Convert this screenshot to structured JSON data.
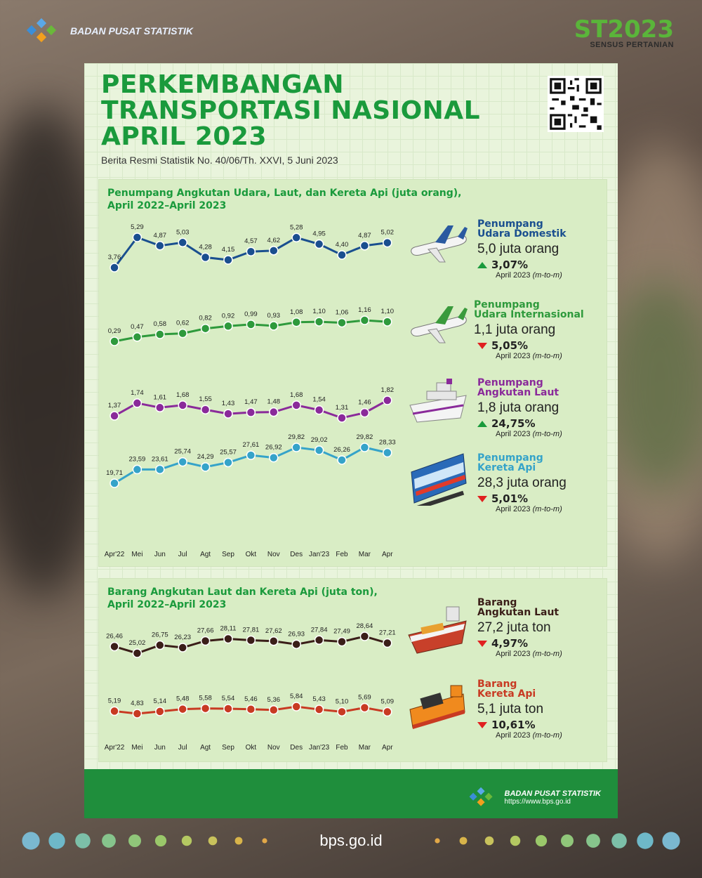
{
  "header": {
    "org_name": "BADAN PUSAT STATISTIK",
    "census_logo": "ST2023",
    "census_name": "SENSUS PERTANIAN"
  },
  "title": [
    "PERKEMBANGAN",
    "TRANSPORTASI NASIONAL",
    "APRIL 2023"
  ],
  "subtitle": "Berita Resmi Statistik No. 40/06/Th. XXVI, 5 Juni 2023",
  "chart_data": [
    {
      "type": "line",
      "title": "Penumpang Angkutan Udara, Laut, dan Kereta Api (juta orang), April 2022–April 2023",
      "categories": [
        "Apr'22",
        "Mei",
        "Jun",
        "Jul",
        "Agt",
        "Sep",
        "Okt",
        "Nov",
        "Des",
        "Jan'23",
        "Feb",
        "Mar",
        "Apr"
      ],
      "series": [
        {
          "name": "Penumpang Udara Domestik",
          "color": "#1a4f8f",
          "labels": [
            "3,76",
            "5,29",
            "4,87",
            "5,03",
            "4,28",
            "4,15",
            "4,57",
            "4,62",
            "5,28",
            "4,95",
            "4,40",
            "4,87",
            "5,02"
          ],
          "values": [
            3.76,
            5.29,
            4.87,
            5.03,
            4.28,
            4.15,
            4.57,
            4.62,
            5.28,
            4.95,
            4.4,
            4.87,
            5.02
          ]
        },
        {
          "name": "Penumpang Udara Internasional",
          "color": "#2e9a3c",
          "labels": [
            "0,29",
            "0,47",
            "0,58",
            "0,62",
            "0,82",
            "0,92",
            "0,99",
            "0,93",
            "1,08",
            "1,10",
            "1,06",
            "1,16",
            "1,10"
          ],
          "values": [
            0.29,
            0.47,
            0.58,
            0.62,
            0.82,
            0.92,
            0.99,
            0.93,
            1.08,
            1.1,
            1.06,
            1.16,
            1.1
          ]
        },
        {
          "name": "Penumpang Angkutan Laut",
          "color": "#8a2a9a",
          "labels": [
            "1,37",
            "1,74",
            "1,61",
            "1,68",
            "1,55",
            "1,43",
            "1,47",
            "1,48",
            "1,68",
            "1,54",
            "1,31",
            "1,46",
            "1,82"
          ],
          "values": [
            1.37,
            1.74,
            1.61,
            1.68,
            1.55,
            1.43,
            1.47,
            1.48,
            1.68,
            1.54,
            1.31,
            1.46,
            1.82
          ]
        },
        {
          "name": "Penumpang Kereta Api",
          "color": "#35a3c9",
          "labels": [
            "19,71",
            "23,59",
            "23,61",
            "25,74",
            "24,29",
            "25,57",
            "27,61",
            "26,92",
            "29,82",
            "29,02",
            "26,26",
            "29,82",
            "28,33"
          ],
          "values": [
            19.71,
            23.59,
            23.61,
            25.74,
            24.29,
            25.57,
            27.61,
            26.92,
            29.82,
            29.02,
            26.26,
            29.82,
            28.33
          ]
        }
      ]
    },
    {
      "type": "line",
      "title": "Barang Angkutan Laut dan Kereta Api (juta ton), April 2022–April 2023",
      "categories": [
        "Apr'22",
        "Mei",
        "Jun",
        "Jul",
        "Agt",
        "Sep",
        "Okt",
        "Nov",
        "Des",
        "Jan'23",
        "Feb",
        "Mar",
        "Apr"
      ],
      "series": [
        {
          "name": "Barang Angkutan Laut",
          "color": "#3a1e18",
          "labels": [
            "26,46",
            "25,02",
            "26,75",
            "26,23",
            "27,66",
            "28,11",
            "27,81",
            "27,62",
            "26,93",
            "27,84",
            "27,49",
            "28,64",
            "27,21"
          ],
          "values": [
            26.46,
            25.02,
            26.75,
            26.23,
            27.66,
            28.11,
            27.81,
            27.62,
            26.93,
            27.84,
            27.49,
            28.64,
            27.21
          ]
        },
        {
          "name": "Barang Kereta Api",
          "color": "#c83a22",
          "labels": [
            "5,19",
            "4,83",
            "5,14",
            "5,48",
            "5,58",
            "5,54",
            "5,46",
            "5,36",
            "5,84",
            "5,43",
            "5,10",
            "5,69",
            "5,09"
          ],
          "values": [
            5.19,
            4.83,
            5.14,
            5.48,
            5.58,
            5.54,
            5.46,
            5.36,
            5.84,
            5.43,
            5.1,
            5.69,
            5.09
          ]
        }
      ]
    }
  ],
  "panels": {
    "passenger_title_1": "Penumpang Angkutan Udara, Laut, dan Kereta Api (juta orang),",
    "passenger_title_2": "April 2022–April 2023",
    "cargo_title_1": "Barang Angkutan Laut dan Kereta Api (juta ton),",
    "cargo_title_2": "April 2022–April 2023"
  },
  "cards": [
    {
      "label1": "Penumpang",
      "label2": "Udara Domestik",
      "value": "5,0 juta orang",
      "change": "3,07%",
      "direction": "up",
      "period": "April 2023",
      "period_note": "(m-to-m)",
      "color": "#1a4f8f",
      "icon": "airplane-icon"
    },
    {
      "label1": "Penumpang",
      "label2": "Udara Internasional",
      "value": "1,1 juta orang",
      "change": "5,05%",
      "direction": "down",
      "period": "April 2023",
      "period_note": "(m-to-m)",
      "color": "#2e9a3c",
      "icon": "airplane-icon"
    },
    {
      "label1": "Penumpang",
      "label2": "Angkutan Laut",
      "value": "1,8 juta orang",
      "change": "24,75%",
      "direction": "up",
      "period": "April 2023",
      "period_note": "(m-to-m)",
      "color": "#8a2a9a",
      "icon": "ship-icon"
    },
    {
      "label1": "Penumpang",
      "label2": "Kereta Api",
      "value": "28,3 juta orang",
      "change": "5,01%",
      "direction": "down",
      "period": "April 2023",
      "period_note": "(m-to-m)",
      "color": "#35a3c9",
      "icon": "train-icon"
    },
    {
      "label1": "Barang",
      "label2": "Angkutan Laut",
      "value": "27,2 juta ton",
      "change": "4,97%",
      "direction": "down",
      "period": "April 2023",
      "period_note": "(m-to-m)",
      "color": "#3a1e18",
      "icon": "cargo-ship-icon"
    },
    {
      "label1": "Barang",
      "label2": "Kereta Api",
      "value": "5,1 juta ton",
      "change": "10,61%",
      "direction": "down",
      "period": "April 2023",
      "period_note": "(m-to-m)",
      "color": "#c83a22",
      "icon": "freight-train-icon"
    }
  ],
  "footer": {
    "org_name": "BADAN PUSAT STATISTIK",
    "url": "https://www.bps.go.id"
  },
  "site": "bps.go.id"
}
